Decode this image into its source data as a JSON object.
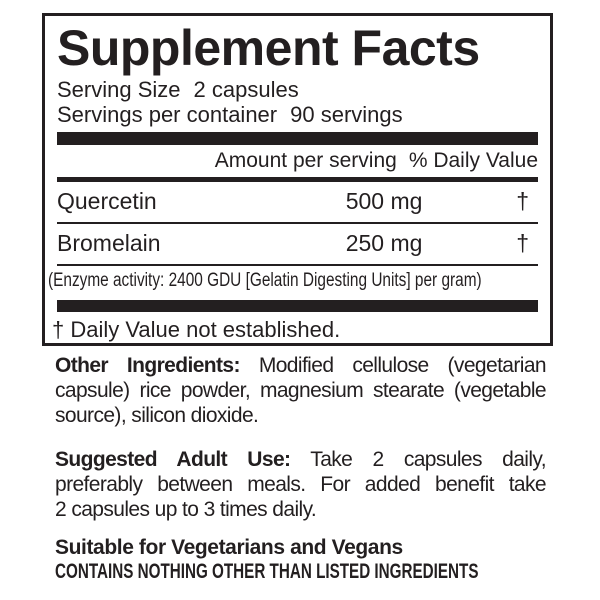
{
  "colors": {
    "text": "#231f20",
    "background": "#ffffff"
  },
  "label": {
    "title": "Supplement Facts",
    "serving_size": {
      "label": "Serving Size",
      "value": "2 capsules"
    },
    "servings_per_container": {
      "label": "Servings per container",
      "value": "90 servings"
    },
    "columns": {
      "amount": "Amount per serving",
      "daily_value": "% Daily Value"
    },
    "ingredients": [
      {
        "name": "Quercetin",
        "amount": "500 mg",
        "daily_value": "†"
      },
      {
        "name": "Bromelain",
        "amount": "250 mg",
        "daily_value": "†"
      }
    ],
    "enzyme_note": "(Enzyme activity: 2400 GDU [Gelatin Digesting Units] per gram)",
    "footnote": "† Daily Value not established."
  },
  "other_ingredients": {
    "heading": "Other Ingredients:",
    "line1_rest": "Modified cellulose (vegetarian",
    "line2": "capsule) rice powder, magnesium stearate (vegetable",
    "line3": "source), silicon dioxide."
  },
  "suggested_use": {
    "heading": "Suggested Adult Use:",
    "line1_rest": "Take 2 capsules daily,",
    "line2": "preferably between meals. For added benefit take",
    "line3": "2 capsules up to 3 times daily."
  },
  "footer": {
    "vegetarian_note": "Suitable for Vegetarians and Vegans",
    "contains_note": "CONTAINS NOTHING OTHER THAN LISTED INGREDIENTS"
  }
}
